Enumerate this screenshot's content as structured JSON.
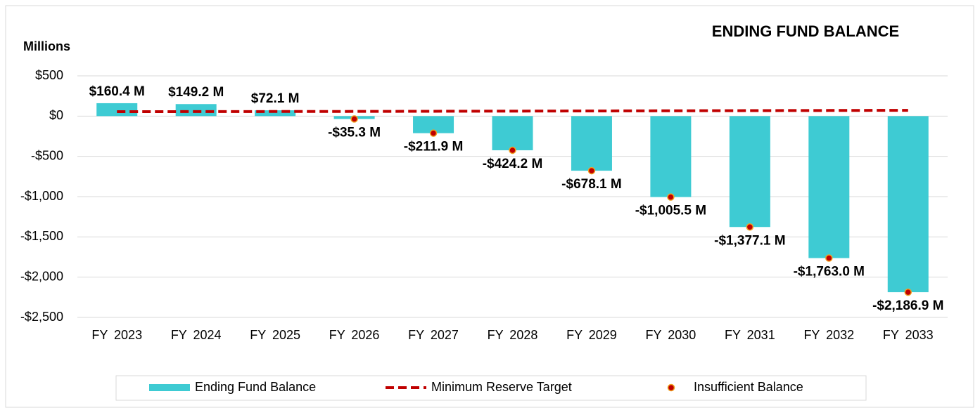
{
  "chart_data": {
    "type": "bar",
    "title": "ENDING FUND BALANCE",
    "y_label": "Millions",
    "categories": [
      "FY 2023",
      "FY 2024",
      "FY 2025",
      "FY 2026",
      "FY 2027",
      "FY 2028",
      "FY 2029",
      "FY 2030",
      "FY 2031",
      "FY 2032",
      "FY 2033"
    ],
    "series": [
      {
        "name": "Ending Fund Balance",
        "type": "bar",
        "color": "#3ecbd3",
        "values": [
          160.4,
          149.2,
          72.1,
          -35.3,
          -211.9,
          -424.2,
          -678.1,
          -1005.5,
          -1377.1,
          -1763.0,
          -2186.9
        ],
        "value_labels": [
          "$160.4 M",
          "$149.2 M",
          "$72.1 M",
          "-$35.3 M",
          "-$211.9 M",
          "-$424.2 M",
          "-$678.1 M",
          "-$1,005.5 M",
          "-$1,377.1 M",
          "-$1,763.0 M",
          "-$2,186.9 M"
        ]
      },
      {
        "name": "Minimum Reserve Target",
        "type": "line",
        "color": "#c00000",
        "values": [
          55,
          56,
          57,
          58,
          60,
          62,
          64,
          66,
          68,
          70,
          72
        ]
      },
      {
        "name": "Insufficient Balance",
        "type": "scatter",
        "color": "#c00000",
        "values": [
          null,
          null,
          null,
          -35.3,
          -211.9,
          -424.2,
          -678.1,
          -1005.5,
          -1377.1,
          -1763.0,
          -2186.9
        ]
      }
    ],
    "ylim": [
      -2500,
      500
    ],
    "yticks": [
      {
        "value": 500,
        "label": "$500"
      },
      {
        "value": 0,
        "label": "$0"
      },
      {
        "value": -500,
        "label": "-$500"
      },
      {
        "value": -1000,
        "label": "-$1,000"
      },
      {
        "value": -1500,
        "label": "-$1,500"
      },
      {
        "value": -2000,
        "label": "-$2,000"
      },
      {
        "value": -2500,
        "label": "-$2,500"
      }
    ],
    "grid": true,
    "legend": "bottom"
  }
}
